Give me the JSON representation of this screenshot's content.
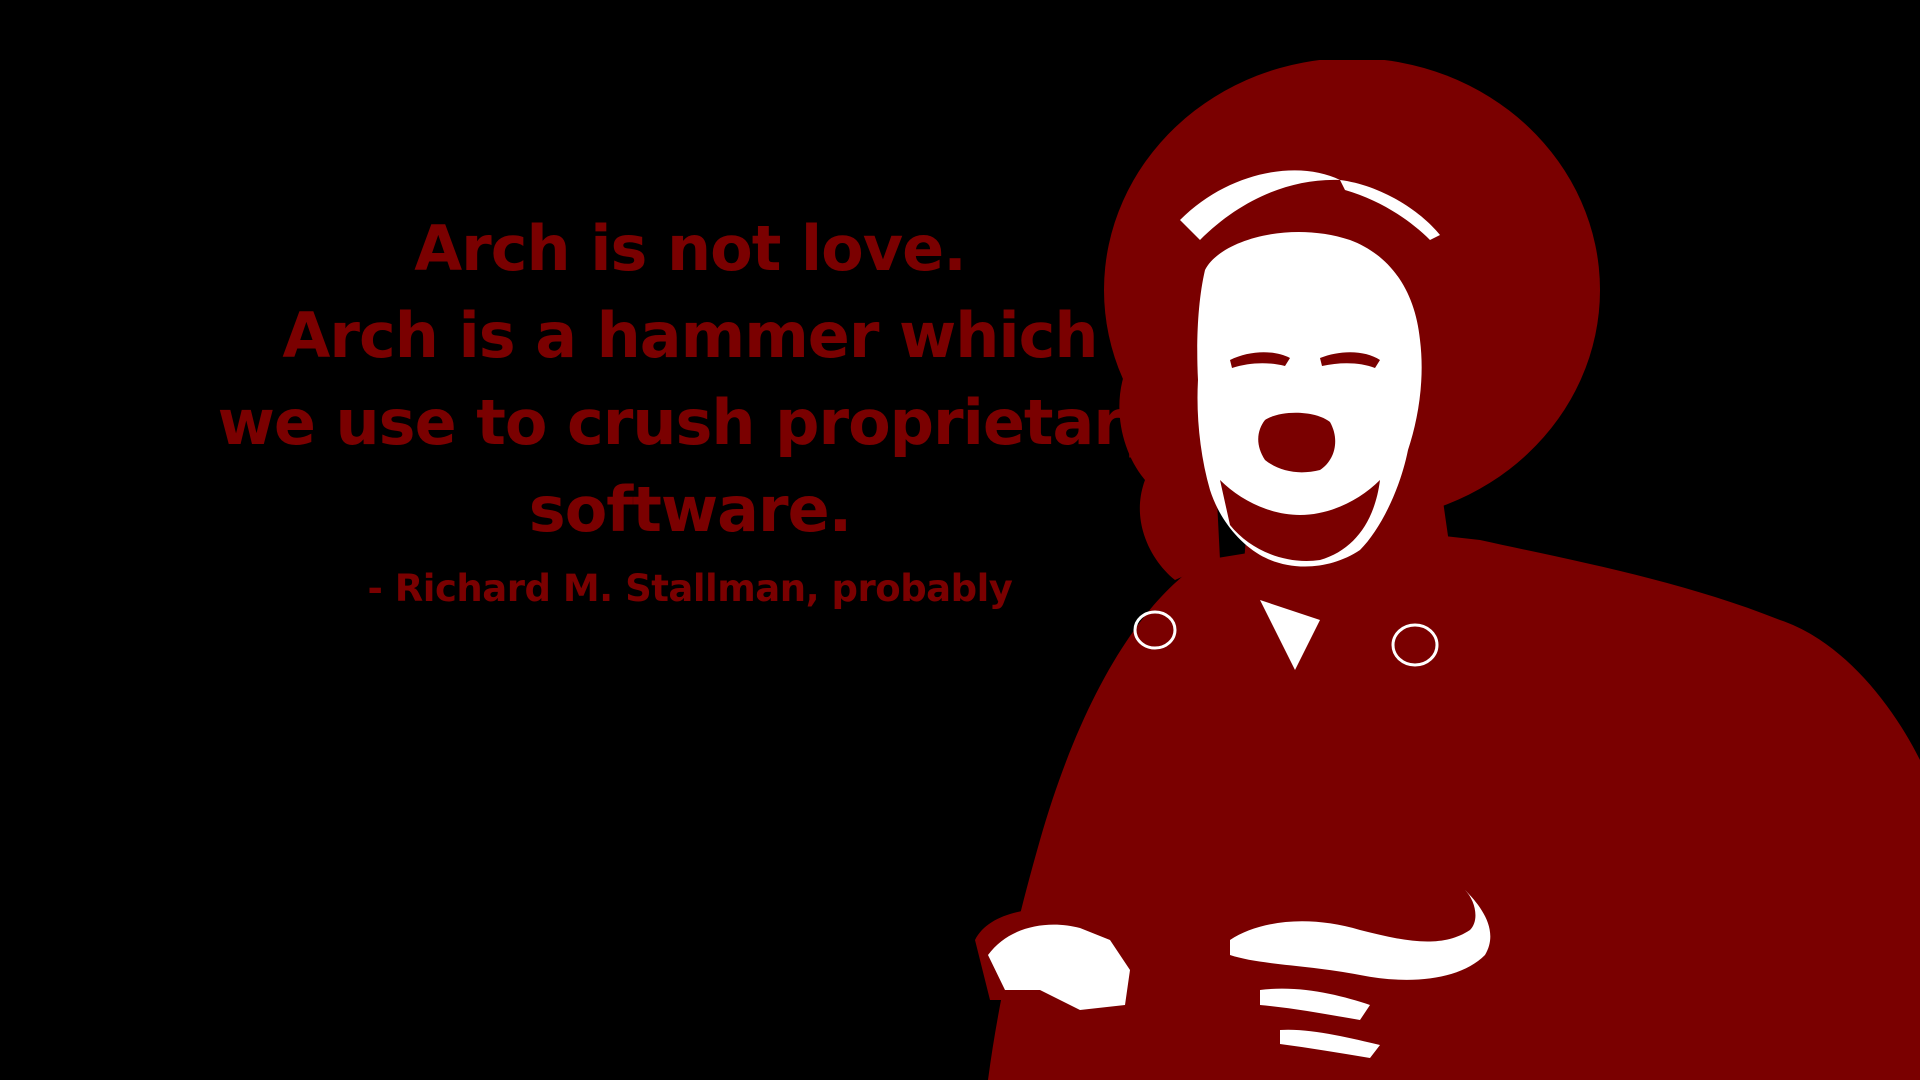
{
  "colors": {
    "background": "#000000",
    "accent": "#7a0000",
    "highlight": "#ffffff"
  },
  "quote": {
    "lines": [
      "Arch is not love.",
      "Arch is a hammer which",
      "we use to crush proprietary",
      "software."
    ],
    "attribution": "- Richard M. Stallman, probably"
  },
  "portrait": {
    "subject": "Richard M. Stallman",
    "style": "two-tone red and white posterized portrait"
  }
}
